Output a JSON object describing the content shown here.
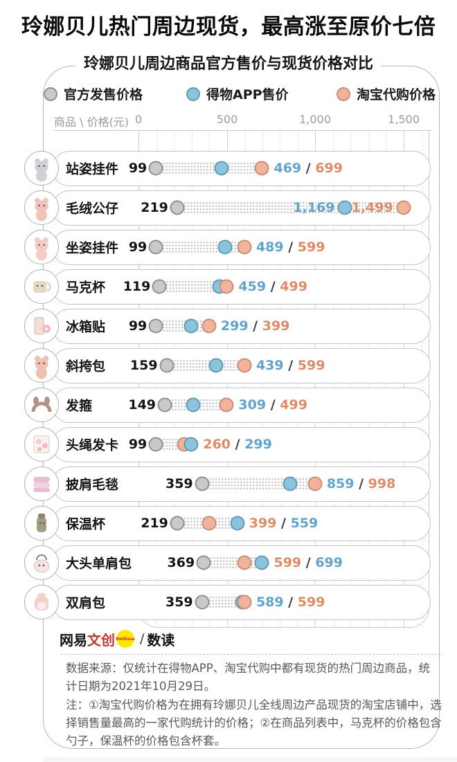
{
  "title": "玲娜贝儿热门周边现货，最高涨至原价七倍",
  "subtitle": "玲娜贝儿周边商品官方售价与现货价格对比",
  "legend": {
    "items": [
      {
        "key": "official",
        "label": "官方发售价格"
      },
      {
        "key": "dewu",
        "label": "得物APP售价"
      },
      {
        "key": "taobao",
        "label": "淘宝代购价格"
      }
    ]
  },
  "axis": {
    "label": "商品 \\ 价格(元)",
    "ticks": [
      {
        "text": "0",
        "value": 0
      },
      {
        "text": "500",
        "value": 500
      },
      {
        "text": "1,000",
        "value": 1000
      },
      {
        "text": "1,500",
        "value": 1500
      }
    ]
  },
  "colors": {
    "official_fill": "#c9c9c9",
    "official_stroke": "#8f8f8f",
    "dewu_fill": "#8ac4dc",
    "dewu_stroke": "#649bb4",
    "taobao_fill": "#f1b39c",
    "taobao_stroke": "#c98e77",
    "dewu_text": "#64a3c9",
    "taobao_text": "#de8b68"
  },
  "chart_data": {
    "type": "scatter",
    "subtype": "dot-plot-price-comparison",
    "unit": "元",
    "x_axis": {
      "min": 0,
      "max": 1500,
      "major_ticks": [
        0,
        500,
        1000,
        1500
      ],
      "minor_step": 100
    },
    "series_names": [
      "官方发售价格",
      "得物APP售价",
      "淘宝代购价格"
    ],
    "rows": [
      {
        "name": "站姿挂件",
        "icon": "plush-standing",
        "icon_color": "#cfd0d8",
        "official": 99,
        "dewu": 469,
        "taobao": 699,
        "official_text": "99",
        "dewu_text": "469",
        "taobao_text": "699",
        "label_position": "after",
        "label_order": [
          "dewu",
          "taobao"
        ]
      },
      {
        "name": "毛绒公仔",
        "icon": "plush-doll",
        "icon_color": "#f0c3ba",
        "official": 219,
        "dewu": 1169,
        "taobao": 1499,
        "official_text": "219",
        "dewu_text": "1,169",
        "taobao_text": "1,499",
        "label_position": "at-dot",
        "label_order": [
          "dewu",
          "taobao"
        ]
      },
      {
        "name": "坐姿挂件",
        "icon": "plush-sitting",
        "icon_color": "#f3cdc3",
        "official": 99,
        "dewu": 489,
        "taobao": 599,
        "official_text": "99",
        "dewu_text": "489",
        "taobao_text": "599",
        "label_position": "after",
        "label_order": [
          "dewu",
          "taobao"
        ]
      },
      {
        "name": "马克杯",
        "icon": "mug",
        "icon_color": "#e6d6c4",
        "official": 119,
        "dewu": 459,
        "taobao": 499,
        "official_text": "119",
        "dewu_text": "459",
        "taobao_text": "499",
        "label_position": "after",
        "label_order": [
          "dewu",
          "taobao"
        ]
      },
      {
        "name": "冰箱贴",
        "icon": "fridge-magnet",
        "icon_color": "#f0dfd8",
        "official": 99,
        "dewu": 299,
        "taobao": 399,
        "official_text": "99",
        "dewu_text": "299",
        "taobao_text": "399",
        "label_position": "after",
        "label_order": [
          "dewu",
          "taobao"
        ]
      },
      {
        "name": "斜挎包",
        "icon": "crossbody-bag",
        "icon_color": "#efbfb2",
        "official": 159,
        "dewu": 439,
        "taobao": 599,
        "official_text": "159",
        "dewu_text": "439",
        "taobao_text": "599",
        "label_position": "after",
        "label_order": [
          "dewu",
          "taobao"
        ]
      },
      {
        "name": "发箍",
        "icon": "headband",
        "icon_color": "#b2938a",
        "official": 149,
        "dewu": 309,
        "taobao": 499,
        "official_text": "149",
        "dewu_text": "309",
        "taobao_text": "499",
        "label_position": "after",
        "label_order": [
          "dewu",
          "taobao"
        ]
      },
      {
        "name": "头绳发卡",
        "icon": "hair-ties",
        "icon_color": "#f2ccd0",
        "official": 99,
        "dewu": 299,
        "taobao": 260,
        "official_text": "99",
        "dewu_text": "299",
        "taobao_text": "260",
        "label_position": "after",
        "label_order": [
          "taobao",
          "dewu"
        ]
      },
      {
        "name": "披肩毛毯",
        "icon": "blanket",
        "icon_color": "#e6c0d2",
        "official": 359,
        "dewu": 859,
        "taobao": 998,
        "official_text": "359",
        "dewu_text": "859",
        "taobao_text": "998",
        "label_position": "after",
        "label_order": [
          "dewu",
          "taobao"
        ]
      },
      {
        "name": "保温杯",
        "icon": "thermos",
        "icon_color": "#a59c85",
        "official": 219,
        "dewu": 559,
        "taobao": 399,
        "official_text": "219",
        "dewu_text": "559",
        "taobao_text": "399",
        "label_position": "after",
        "label_order": [
          "taobao",
          "dewu"
        ]
      },
      {
        "name": "大头单肩包",
        "icon": "shoulder-bag",
        "icon_color": "#f3e4df",
        "official": 369,
        "dewu": 699,
        "taobao": 599,
        "official_text": "369",
        "dewu_text": "699",
        "taobao_text": "599",
        "label_position": "after",
        "label_order": [
          "taobao",
          "dewu"
        ]
      },
      {
        "name": "双肩包",
        "icon": "backpack",
        "icon_color": "#f2d2ca",
        "official": 359,
        "dewu": 589,
        "taobao": 599,
        "official_text": "359",
        "dewu_text": "589",
        "taobao_text": "599",
        "label_position": "after",
        "label_order": [
          "dewu",
          "taobao"
        ]
      }
    ]
  },
  "footer": {
    "brand": "网易",
    "brand_wen": "文创",
    "badge": "NetEase",
    "divider": "/",
    "brand2": "数读",
    "source": [
      "数据来源：仅统计在得物APP、淘宝代购中都有现货的热门周边商品，统",
      "计日期为2021年10月29日。"
    ],
    "notes": [
      "注：①淘宝代购价格为在拥有玲娜贝儿全线周边产品现货的淘宝店铺中，选",
      "择销售量最高的一家代购统计的价格；②在商品列表中，马克杯的价格包含",
      "勺子，保温杯的价格包含杯套。"
    ]
  }
}
